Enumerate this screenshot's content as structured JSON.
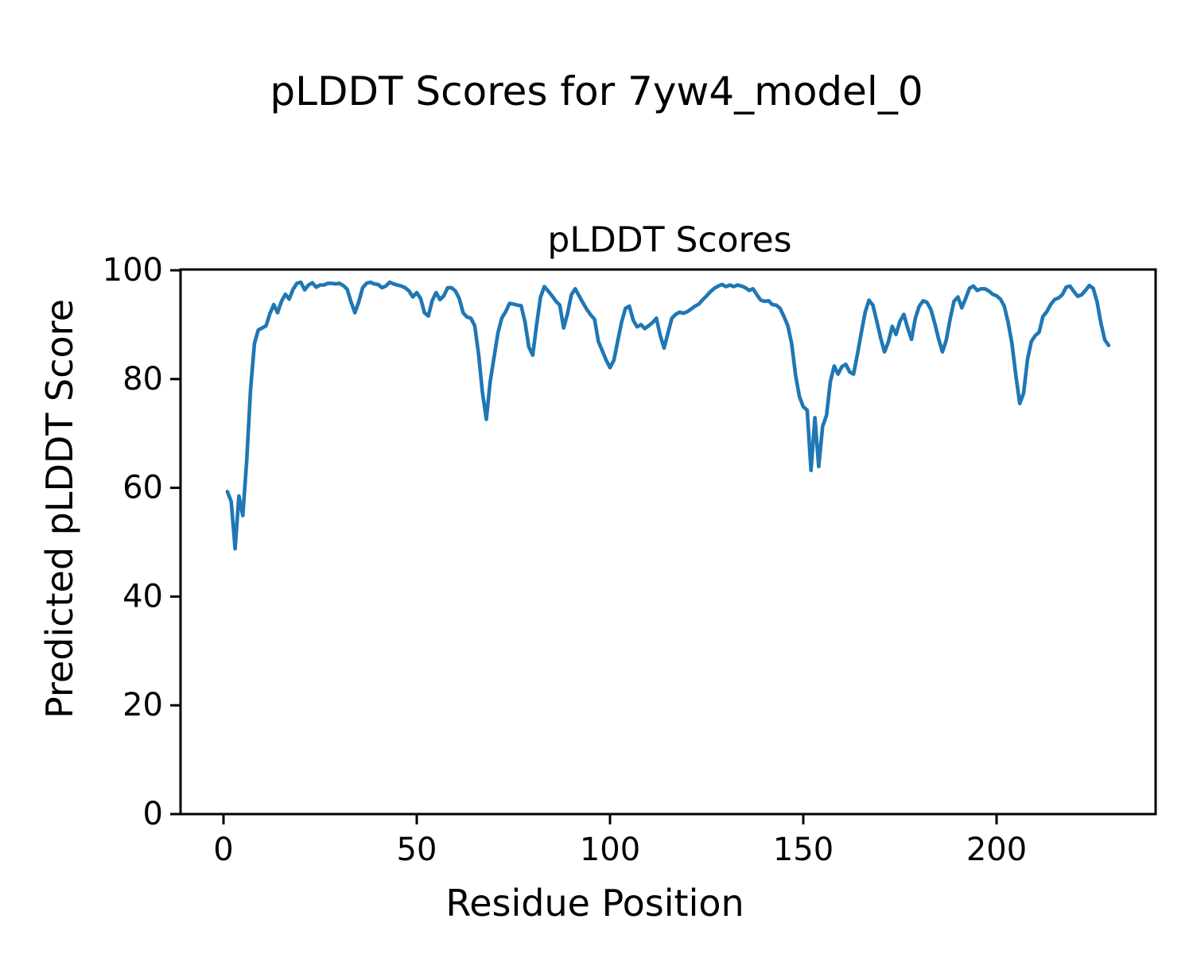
{
  "figure": {
    "suptitle": "pLDDT Scores for 7yw4_model_0",
    "background_color": "#ffffff",
    "text_color": "#000000"
  },
  "chart_data": {
    "type": "line",
    "title": "pLDDT Scores",
    "xlabel": "Residue Position",
    "ylabel": "Predicted pLDDT Score",
    "line_color": "#1f77b4",
    "axis_color": "#000000",
    "grid": false,
    "legend": null,
    "ylim": [
      0,
      100
    ],
    "xlim": [
      -11.1,
      241.2
    ],
    "x_ticks": [
      0,
      50,
      100,
      150,
      200
    ],
    "y_ticks": [
      0,
      20,
      40,
      60,
      80,
      100
    ],
    "x": {
      "start": 1,
      "step": 1,
      "count": 229
    },
    "values": [
      59.3,
      57.5,
      48.8,
      58.5,
      54.9,
      65.0,
      78.0,
      86.5,
      89.0,
      89.4,
      89.8,
      92.0,
      93.7,
      92.2,
      94.3,
      95.6,
      94.7,
      96.5,
      97.6,
      97.8,
      96.4,
      97.3,
      97.7,
      96.9,
      97.3,
      97.3,
      97.6,
      97.6,
      97.5,
      97.6,
      97.2,
      96.5,
      94.2,
      92.2,
      94.2,
      96.8,
      97.6,
      97.8,
      97.5,
      97.4,
      96.8,
      97.1,
      97.8,
      97.5,
      97.3,
      97.1,
      96.8,
      96.2,
      95.1,
      95.9,
      94.8,
      92.2,
      91.6,
      94.4,
      95.9,
      94.6,
      95.3,
      96.8,
      96.8,
      96.2,
      94.8,
      92.2,
      91.4,
      91.2,
      89.8,
      84.5,
      77.5,
      72.6,
      79.5,
      84.0,
      88.5,
      91.2,
      92.4,
      93.9,
      93.8,
      93.6,
      93.5,
      90.5,
      85.9,
      84.4,
      90.0,
      95.0,
      97.0,
      96.2,
      95.3,
      94.3,
      93.6,
      89.4,
      92.0,
      95.5,
      96.6,
      95.3,
      94.0,
      92.8,
      91.8,
      91.0,
      86.9,
      85.2,
      83.5,
      82.1,
      83.5,
      87.0,
      90.5,
      93.0,
      93.4,
      90.8,
      89.6,
      90.0,
      89.3,
      89.8,
      90.4,
      91.2,
      88.0,
      85.7,
      88.5,
      91.2,
      91.9,
      92.3,
      92.1,
      92.4,
      92.9,
      93.4,
      93.8,
      94.6,
      95.3,
      96.1,
      96.7,
      97.1,
      97.4,
      97.0,
      97.3,
      97.0,
      97.3,
      97.1,
      96.8,
      96.3,
      96.6,
      95.5,
      94.5,
      94.3,
      94.4,
      93.7,
      93.6,
      93.0,
      91.5,
      89.8,
      86.5,
      80.7,
      76.8,
      74.9,
      74.3,
      63.2,
      72.9,
      63.9,
      71.3,
      73.3,
      79.5,
      82.4,
      80.9,
      82.3,
      82.7,
      81.3,
      80.9,
      84.5,
      88.5,
      92.3,
      94.5,
      93.6,
      90.7,
      87.6,
      85.0,
      86.8,
      89.7,
      88.2,
      90.6,
      91.9,
      89.4,
      87.3,
      91.2,
      93.4,
      94.4,
      94.1,
      92.8,
      90.3,
      87.4,
      85.0,
      87.2,
      91.1,
      94.3,
      95.1,
      93.1,
      94.8,
      96.7,
      97.1,
      96.3,
      96.6,
      96.6,
      96.2,
      95.6,
      95.3,
      94.7,
      93.4,
      90.4,
      86.5,
      80.6,
      75.5,
      77.4,
      83.6,
      86.9,
      88.0,
      88.6,
      91.5,
      92.4,
      93.7,
      94.6,
      94.9,
      95.5,
      96.9,
      97.1,
      96.1,
      95.2,
      95.5,
      96.3,
      97.2,
      96.7,
      94.2,
      90.3,
      87.2,
      86.2
    ]
  }
}
